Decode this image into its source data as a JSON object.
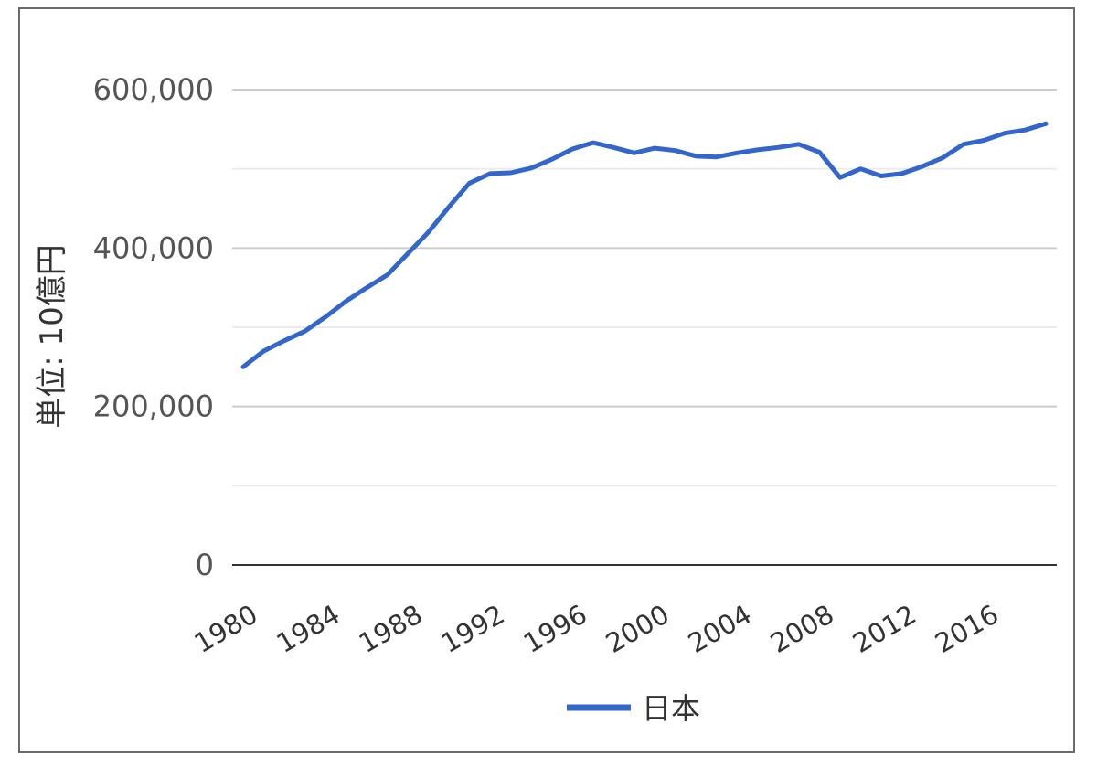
{
  "chart_data": {
    "type": "line",
    "title": "",
    "xlabel": "",
    "ylabel": "単位: 10億円",
    "ylim": [
      0,
      600000
    ],
    "y_ticks": [
      0,
      200000,
      400000,
      600000
    ],
    "y_tick_labels": [
      "0",
      "200,000",
      "400,000",
      "600,000"
    ],
    "x_ticks": [
      1980,
      1984,
      1988,
      1992,
      1996,
      2000,
      2004,
      2008,
      2012,
      2016
    ],
    "x_tick_labels": [
      "1980",
      "1984",
      "1988",
      "1992",
      "1996",
      "2000",
      "2004",
      "2008",
      "2012",
      "2016"
    ],
    "xlim": [
      1980,
      2019
    ],
    "grid": true,
    "legend_position": "bottom",
    "series_colors": [
      "#3366cc"
    ],
    "x": [
      1980,
      1981,
      1982,
      1983,
      1984,
      1985,
      1986,
      1987,
      1988,
      1989,
      1990,
      1991,
      1992,
      1993,
      1994,
      1995,
      1996,
      1997,
      1998,
      1999,
      2000,
      2001,
      2002,
      2003,
      2004,
      2005,
      2006,
      2007,
      2008,
      2009,
      2010,
      2011,
      2012,
      2013,
      2014,
      2015,
      2016,
      2017,
      2018,
      2019
    ],
    "series": [
      {
        "name": "日本",
        "values": [
          250000,
          270000,
          283000,
          295000,
          313000,
          333000,
          350000,
          366000,
          393000,
          420000,
          452000,
          482000,
          494000,
          495000,
          501000,
          512000,
          525000,
          533000,
          527000,
          520000,
          526000,
          523000,
          516000,
          515000,
          520000,
          524000,
          527000,
          531000,
          521000,
          489000,
          500000,
          491000,
          494000,
          503000,
          514000,
          531000,
          536000,
          545000,
          549000,
          557000
        ]
      }
    ]
  }
}
